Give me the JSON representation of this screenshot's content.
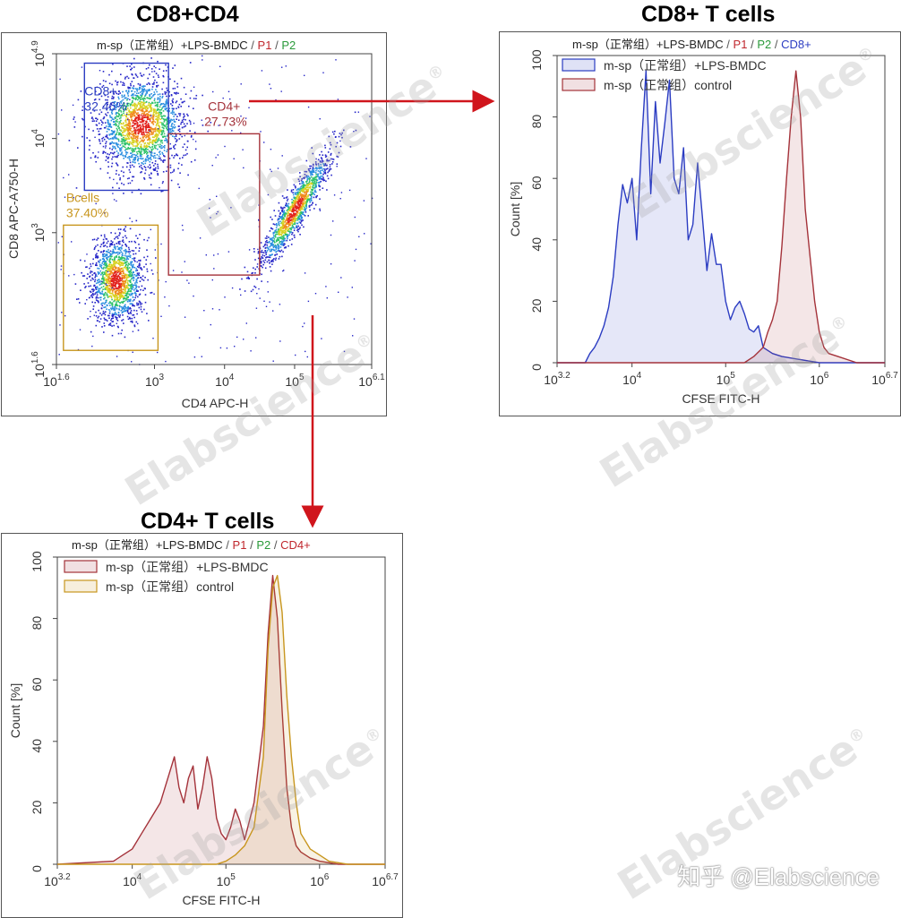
{
  "watermark": {
    "text": "Elabscience",
    "registered": "®"
  },
  "footer": {
    "zhihu_handle": "知乎 @Elabscience"
  },
  "colors": {
    "blue": "#2b3cc2",
    "red": "#c0272d",
    "green": "#2a9a3a",
    "gold": "#c8961e",
    "darkred": "#a4323a",
    "arrow": "#d0151c"
  },
  "chart_data": [
    {
      "id": "dotplot",
      "type": "scatter",
      "title": "CD8+CD4",
      "subtitle": {
        "sample": "m-sp（正常组）+LPS-BMDC",
        "sep1": "/",
        "p1": "P1",
        "sep2": "/",
        "p2": "P2"
      },
      "xlabel": "CD4  APC-H",
      "ylabel": "CD8  APC-A750-H",
      "x_scale": "log10",
      "y_scale": "log10",
      "xlim": [
        1.6,
        6.1
      ],
      "ylim": [
        1.6,
        4.9
      ],
      "x_ticks": [
        {
          "base": "10",
          "exp": "1.6"
        },
        {
          "base": "10",
          "exp": "3"
        },
        {
          "base": "10",
          "exp": "4"
        },
        {
          "base": "10",
          "exp": "5"
        },
        {
          "base": "10",
          "exp": "6.1"
        }
      ],
      "y_ticks": [
        {
          "base": "10",
          "exp": "1.6"
        },
        {
          "base": "10",
          "exp": "3"
        },
        {
          "base": "10",
          "exp": "4"
        },
        {
          "base": "10",
          "exp": "4.9"
        }
      ],
      "populations": [
        {
          "name": "Bcells",
          "cx": 2.45,
          "cy": 2.5,
          "sx": 0.18,
          "sy": 0.22,
          "n": 1400
        },
        {
          "name": "CD8+",
          "cx": 2.8,
          "cy": 4.15,
          "sx": 0.3,
          "sy": 0.25,
          "n": 1900
        },
        {
          "name": "CD4+",
          "cx": 5.0,
          "cy": 3.25,
          "sx": 0.25,
          "sy": 0.3,
          "n": 1300
        }
      ],
      "gates": [
        {
          "name": "CD8+",
          "percent": "32.46%",
          "color": "blue",
          "xr": [
            2.0,
            3.2
          ],
          "yr": [
            3.45,
            4.8
          ],
          "label_pos": "top-left"
        },
        {
          "name": "CD4+",
          "percent": "27.73%",
          "color": "darkred",
          "xr": [
            3.2,
            4.5
          ],
          "yr": [
            2.55,
            4.05
          ],
          "label_pos": "top-right"
        },
        {
          "name": "Bcells",
          "percent": "37.40%",
          "color": "gold",
          "xr": [
            1.7,
            3.05
          ],
          "yr": [
            1.75,
            3.08
          ],
          "label_pos": "top-left"
        }
      ]
    },
    {
      "id": "hist_cd8",
      "type": "area",
      "title": "CD8+ T cells",
      "subtitle": {
        "sample": "m-sp（正常组）+LPS-BMDC",
        "sep1": "/",
        "p1": "P1",
        "sep2": "/",
        "p2": "P2",
        "sep3": "/",
        "gate": "CD8+"
      },
      "xlabel": "CFSE FITC-H",
      "ylabel": "Count [%]",
      "x_scale": "log10",
      "xlim": [
        3.2,
        6.7
      ],
      "ylim": [
        0,
        100
      ],
      "x_ticks": [
        {
          "base": "10",
          "exp": "3.2"
        },
        {
          "base": "10",
          "exp": "4"
        },
        {
          "base": "10",
          "exp": "5"
        },
        {
          "base": "10",
          "exp": "6"
        },
        {
          "base": "10",
          "exp": "6.7"
        }
      ],
      "y_ticks": [
        0,
        20,
        40,
        60,
        80,
        100
      ],
      "legend": [
        "m-sp（正常组）+LPS-BMDC",
        "m-sp（正常组）control"
      ],
      "series": [
        {
          "name": "m-sp（正常组）+LPS-BMDC",
          "color": "blue",
          "x": [
            3.2,
            3.5,
            3.55,
            3.6,
            3.65,
            3.7,
            3.75,
            3.8,
            3.85,
            3.9,
            3.95,
            4.0,
            4.05,
            4.1,
            4.15,
            4.2,
            4.25,
            4.3,
            4.35,
            4.4,
            4.45,
            4.5,
            4.55,
            4.6,
            4.65,
            4.7,
            4.75,
            4.8,
            4.85,
            4.9,
            4.95,
            5.0,
            5.05,
            5.1,
            5.15,
            5.2,
            5.25,
            5.3,
            5.35,
            5.4,
            5.5,
            5.6,
            5.8,
            6.0,
            6.7
          ],
          "values": [
            0,
            0,
            3,
            5,
            8,
            12,
            18,
            28,
            45,
            58,
            52,
            60,
            40,
            70,
            95,
            55,
            85,
            65,
            78,
            92,
            60,
            55,
            70,
            40,
            45,
            65,
            48,
            30,
            42,
            32,
            32,
            20,
            14,
            18,
            20,
            16,
            11,
            10,
            12,
            5,
            3,
            2,
            1,
            0,
            0
          ]
        },
        {
          "name": "m-sp（正常组）control",
          "color": "darkred",
          "x": [
            3.2,
            5.2,
            5.3,
            5.4,
            5.45,
            5.5,
            5.55,
            5.6,
            5.65,
            5.7,
            5.75,
            5.8,
            5.85,
            5.9,
            5.95,
            6.0,
            6.05,
            6.1,
            6.2,
            6.4,
            6.7
          ],
          "values": [
            0,
            0,
            2,
            5,
            10,
            14,
            20,
            38,
            60,
            80,
            95,
            80,
            50,
            35,
            20,
            10,
            5,
            3,
            2,
            0,
            0
          ]
        }
      ]
    },
    {
      "id": "hist_cd4",
      "type": "area",
      "title": "CD4+ T cells",
      "subtitle": {
        "sample": "m-sp（正常组）+LPS-BMDC",
        "sep1": "/",
        "p1": "P1",
        "sep2": "/",
        "p2": "P2",
        "sep3": "/",
        "gate": "CD4+"
      },
      "xlabel": "CFSE FITC-H",
      "ylabel": "Count [%]",
      "x_scale": "log10",
      "xlim": [
        3.2,
        6.7
      ],
      "ylim": [
        0,
        100
      ],
      "x_ticks": [
        {
          "base": "10",
          "exp": "3.2"
        },
        {
          "base": "10",
          "exp": "4"
        },
        {
          "base": "10",
          "exp": "5"
        },
        {
          "base": "10",
          "exp": "6"
        },
        {
          "base": "10",
          "exp": "6.7"
        }
      ],
      "y_ticks": [
        0,
        20,
        40,
        60,
        80,
        100
      ],
      "legend": [
        "m-sp（正常组）+LPS-BMDC",
        "m-sp（正常组）control"
      ],
      "series": [
        {
          "name": "m-sp（正常组）+LPS-BMDC",
          "color": "darkred",
          "x": [
            3.2,
            3.8,
            3.9,
            4.0,
            4.1,
            4.2,
            4.3,
            4.4,
            4.45,
            4.5,
            4.55,
            4.6,
            4.65,
            4.7,
            4.75,
            4.8,
            4.85,
            4.9,
            4.95,
            5.0,
            5.05,
            5.1,
            5.15,
            5.2,
            5.3,
            5.4,
            5.45,
            5.5,
            5.55,
            5.6,
            5.65,
            5.7,
            5.75,
            5.8,
            5.9,
            6.0,
            6.2,
            6.7
          ],
          "values": [
            0,
            1,
            3,
            5,
            10,
            15,
            20,
            30,
            35,
            25,
            20,
            28,
            32,
            18,
            25,
            35,
            28,
            15,
            10,
            8,
            12,
            18,
            14,
            8,
            20,
            45,
            75,
            94,
            80,
            50,
            25,
            12,
            6,
            4,
            2,
            1,
            0,
            0
          ]
        },
        {
          "name": "m-sp（正常组）control",
          "color": "gold",
          "x": [
            3.2,
            4.9,
            5.0,
            5.1,
            5.2,
            5.3,
            5.4,
            5.45,
            5.5,
            5.55,
            5.6,
            5.65,
            5.7,
            5.75,
            5.8,
            5.9,
            6.0,
            6.1,
            6.3,
            6.7
          ],
          "values": [
            0,
            0,
            1,
            3,
            6,
            12,
            35,
            70,
            90,
            94,
            82,
            55,
            35,
            20,
            10,
            5,
            3,
            1,
            0,
            0
          ]
        }
      ]
    }
  ]
}
